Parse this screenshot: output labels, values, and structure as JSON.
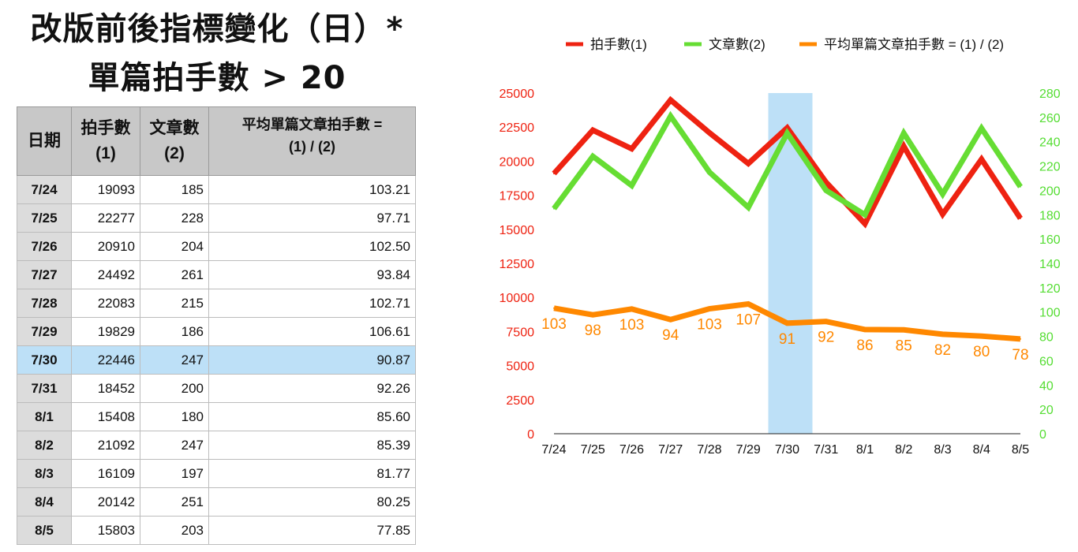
{
  "title_line1": "改版前後指標變化（日）*",
  "title_line2": "單篇拍手數 > 20",
  "table": {
    "headers": [
      "日期",
      "拍手數\n(1)",
      "文章數\n(2)",
      "平均單篇文章拍手數 =\n(1) / (2)"
    ],
    "rows": [
      [
        "7/24",
        "19093",
        "185",
        "103.21"
      ],
      [
        "7/25",
        "22277",
        "228",
        "97.71"
      ],
      [
        "7/26",
        "20910",
        "204",
        "102.50"
      ],
      [
        "7/27",
        "24492",
        "261",
        "93.84"
      ],
      [
        "7/28",
        "22083",
        "215",
        "102.71"
      ],
      [
        "7/29",
        "19829",
        "186",
        "106.61"
      ],
      [
        "7/30",
        "22446",
        "247",
        "90.87"
      ],
      [
        "7/31",
        "18452",
        "200",
        "92.26"
      ],
      [
        "8/1",
        "15408",
        "180",
        "85.60"
      ],
      [
        "8/2",
        "21092",
        "247",
        "85.39"
      ],
      [
        "8/3",
        "16109",
        "197",
        "81.77"
      ],
      [
        "8/4",
        "20142",
        "251",
        "80.25"
      ],
      [
        "8/5",
        "15803",
        "203",
        "77.85"
      ]
    ],
    "highlight_row": "7/30"
  },
  "chart_data": {
    "type": "line",
    "categories": [
      "7/24",
      "7/25",
      "7/26",
      "7/27",
      "7/28",
      "7/29",
      "7/30",
      "7/31",
      "8/1",
      "8/2",
      "8/3",
      "8/4",
      "8/5"
    ],
    "highlight_category": "7/30",
    "highlight_color": "#bde0f7",
    "y_left": {
      "lim": [
        0,
        25000
      ],
      "ticks": [
        0,
        2500,
        5000,
        7500,
        10000,
        12500,
        15000,
        17500,
        20000,
        22500,
        25000
      ],
      "color": "#ee2211"
    },
    "y_right": {
      "lim": [
        0,
        280
      ],
      "ticks": [
        0,
        20,
        40,
        60,
        80,
        100,
        120,
        140,
        160,
        180,
        200,
        220,
        240,
        260,
        280
      ],
      "color": "#55dd33"
    },
    "grid": false,
    "legend_position": "top",
    "series": [
      {
        "name": "拍手數(1)",
        "axis": "left",
        "color": "#ee2211",
        "values": [
          19093,
          22277,
          20910,
          24492,
          22083,
          19829,
          22446,
          18452,
          15408,
          21092,
          16109,
          20142,
          15803
        ]
      },
      {
        "name": "文章數(2)",
        "axis": "right",
        "color": "#66dd33",
        "values": [
          185,
          228,
          204,
          261,
          215,
          186,
          247,
          200,
          180,
          247,
          197,
          251,
          203
        ]
      },
      {
        "name": "平均單篇文章拍手數 = (1) / (2)",
        "axis": "right",
        "color": "#ff8800",
        "values": [
          103.21,
          97.71,
          102.5,
          93.84,
          102.71,
          106.61,
          90.87,
          92.26,
          85.6,
          85.39,
          81.77,
          80.25,
          77.85
        ],
        "data_labels": [
          "103",
          "98",
          "103",
          "94",
          "103",
          "107",
          "91",
          "92",
          "86",
          "85",
          "82",
          "80",
          "78"
        ]
      }
    ]
  }
}
